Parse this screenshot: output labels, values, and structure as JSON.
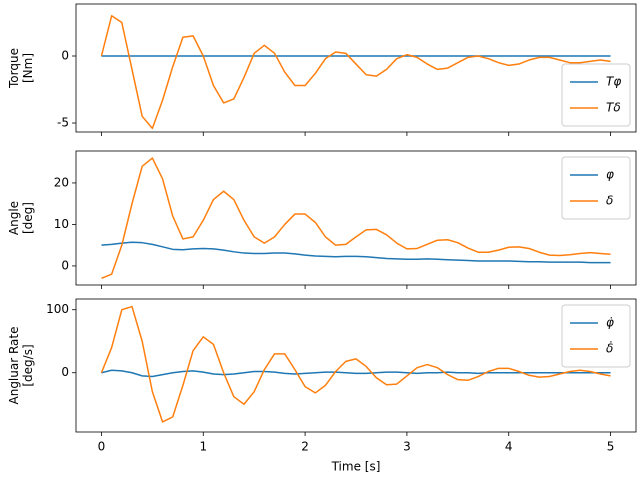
{
  "chart_data": [
    {
      "type": "line",
      "ylabel": [
        "Torque",
        "[Nm]"
      ],
      "legend": "lower right",
      "xlim": [
        -0.25,
        5.25
      ],
      "ylim": [
        -5.67,
        3.88
      ],
      "xticks": [
        0,
        1,
        2,
        3,
        4,
        5
      ],
      "yticks": [
        -5,
        0
      ],
      "x": [
        0,
        0.1,
        0.2,
        0.3,
        0.4,
        0.5,
        0.6,
        0.7,
        0.8,
        0.9,
        1,
        1.1,
        1.2,
        1.3,
        1.4,
        1.5,
        1.6,
        1.7,
        1.8,
        1.9,
        2,
        2.1,
        2.2,
        2.3,
        2.4,
        2.5,
        2.6,
        2.7,
        2.8,
        2.9,
        3,
        3.1,
        3.2,
        3.3,
        3.4,
        3.5,
        3.6,
        3.7,
        3.8,
        3.9,
        4,
        4.1,
        4.2,
        4.3,
        4.4,
        4.5,
        4.6,
        4.7,
        4.8,
        4.9,
        5
      ],
      "series": [
        {
          "name": "Tφ",
          "color": "#1f77b4",
          "values": [
            0,
            0,
            0,
            0,
            0,
            0,
            0,
            0,
            0,
            0,
            0,
            0,
            0,
            0,
            0,
            0,
            0,
            0,
            0,
            0,
            0,
            0,
            0,
            0,
            0,
            0,
            0,
            0,
            0,
            0,
            0,
            0,
            0,
            0,
            0,
            0,
            0,
            0,
            0,
            0,
            0,
            0,
            0,
            0,
            0,
            0,
            0,
            0,
            0,
            0,
            0
          ]
        },
        {
          "name": "Tδ",
          "color": "#ff7f0e",
          "values": [
            0,
            3.0,
            2.5,
            -1.0,
            -4.5,
            -5.4,
            -3.3,
            -0.8,
            1.4,
            1.5,
            0.0,
            -2.2,
            -3.5,
            -3.2,
            -1.6,
            0.2,
            0.8,
            0.2,
            -1.2,
            -2.2,
            -2.2,
            -1.3,
            -0.2,
            0.3,
            0.2,
            -0.6,
            -1.4,
            -1.5,
            -1.0,
            -0.2,
            0.1,
            -0.1,
            -0.6,
            -1.0,
            -0.9,
            -0.5,
            -0.1,
            0.0,
            -0.2,
            -0.5,
            -0.7,
            -0.6,
            -0.3,
            -0.1,
            -0.1,
            -0.3,
            -0.5,
            -0.5,
            -0.4,
            -0.3,
            -0.4
          ]
        }
      ]
    },
    {
      "type": "line",
      "ylabel": [
        "Angle",
        "[deg]"
      ],
      "legend": "upper right",
      "xlim": [
        -0.25,
        5.25
      ],
      "ylim": [
        -4.6,
        27.7
      ],
      "xticks": [
        0,
        1,
        2,
        3,
        4,
        5
      ],
      "yticks": [
        0,
        10,
        20
      ],
      "x": [
        0,
        0.1,
        0.2,
        0.3,
        0.4,
        0.5,
        0.6,
        0.7,
        0.8,
        0.9,
        1,
        1.1,
        1.2,
        1.3,
        1.4,
        1.5,
        1.6,
        1.7,
        1.8,
        1.9,
        2,
        2.1,
        2.2,
        2.3,
        2.4,
        2.5,
        2.6,
        2.7,
        2.8,
        2.9,
        3,
        3.1,
        3.2,
        3.3,
        3.4,
        3.5,
        3.6,
        3.7,
        3.8,
        3.9,
        4,
        4.1,
        4.2,
        4.3,
        4.4,
        4.5,
        4.6,
        4.7,
        4.8,
        4.9,
        5
      ],
      "series": [
        {
          "name": "φ",
          "color": "#1f77b4",
          "values": [
            5.0,
            5.2,
            5.5,
            5.7,
            5.6,
            5.2,
            4.6,
            4.0,
            3.9,
            4.1,
            4.2,
            4.1,
            3.8,
            3.4,
            3.1,
            3.0,
            3.0,
            3.1,
            3.1,
            2.9,
            2.6,
            2.4,
            2.3,
            2.2,
            2.3,
            2.3,
            2.2,
            2.0,
            1.8,
            1.7,
            1.6,
            1.6,
            1.7,
            1.6,
            1.5,
            1.4,
            1.3,
            1.2,
            1.2,
            1.2,
            1.2,
            1.1,
            1.0,
            1.0,
            0.9,
            0.9,
            0.9,
            0.9,
            0.8,
            0.8,
            0.8
          ]
        },
        {
          "name": "δ",
          "color": "#ff7f0e",
          "values": [
            -3,
            -2,
            5,
            15,
            24,
            26,
            21,
            12,
            6.5,
            7,
            11,
            16,
            18,
            16,
            11,
            7,
            5.5,
            7,
            10,
            12.5,
            12.5,
            10.5,
            7,
            5,
            5.2,
            7,
            8.7,
            8.8,
            7.5,
            5.5,
            4.1,
            4.2,
            5.2,
            6.2,
            6.3,
            5.6,
            4.3,
            3.3,
            3.3,
            3.8,
            4.5,
            4.6,
            4.2,
            3.3,
            2.6,
            2.5,
            2.7,
            3.0,
            3.2,
            3.0,
            2.8
          ]
        }
      ]
    },
    {
      "type": "line",
      "ylabel": [
        "Angluar Rate",
        "[deg/s]"
      ],
      "xlabel": "Time [s]",
      "legend": "upper right",
      "xlim": [
        -0.25,
        5.25
      ],
      "ylim": [
        -94,
        117
      ],
      "xticks": [
        0,
        1,
        2,
        3,
        4,
        5
      ],
      "yticks": [
        0,
        100
      ],
      "x": [
        0,
        0.1,
        0.2,
        0.3,
        0.4,
        0.5,
        0.6,
        0.7,
        0.8,
        0.9,
        1,
        1.1,
        1.2,
        1.3,
        1.4,
        1.5,
        1.6,
        1.7,
        1.8,
        1.9,
        2,
        2.1,
        2.2,
        2.3,
        2.4,
        2.5,
        2.6,
        2.7,
        2.8,
        2.9,
        3,
        3.1,
        3.2,
        3.3,
        3.4,
        3.5,
        3.6,
        3.7,
        3.8,
        3.9,
        4,
        4.1,
        4.2,
        4.3,
        4.4,
        4.5,
        4.6,
        4.7,
        4.8,
        4.9,
        5
      ],
      "series": [
        {
          "name": "φ̇",
          "color": "#1f77b4",
          "values": [
            0,
            4,
            3,
            0,
            -5,
            -6,
            -3,
            0,
            2,
            3,
            1,
            -2,
            -3,
            -2,
            0,
            2,
            2,
            1,
            -1,
            -2,
            -1,
            0,
            1,
            1,
            0,
            -1,
            -1,
            0,
            1,
            1,
            0,
            -1,
            0,
            0,
            1,
            0,
            0,
            -1,
            0,
            0,
            0,
            0,
            0,
            0,
            0,
            0,
            0,
            0,
            0,
            0,
            0
          ]
        },
        {
          "name": "δ̇",
          "color": "#ff7f0e",
          "values": [
            0,
            40,
            100,
            105,
            50,
            -30,
            -78,
            -70,
            -20,
            35,
            57,
            45,
            0,
            -38,
            -50,
            -30,
            5,
            30,
            30,
            5,
            -22,
            -32,
            -20,
            2,
            18,
            22,
            10,
            -8,
            -19,
            -18,
            -5,
            8,
            13,
            8,
            -3,
            -11,
            -12,
            -6,
            2,
            7,
            7,
            2,
            -4,
            -7,
            -6,
            -2,
            2,
            4,
            2,
            -2,
            -5
          ]
        }
      ]
    }
  ]
}
